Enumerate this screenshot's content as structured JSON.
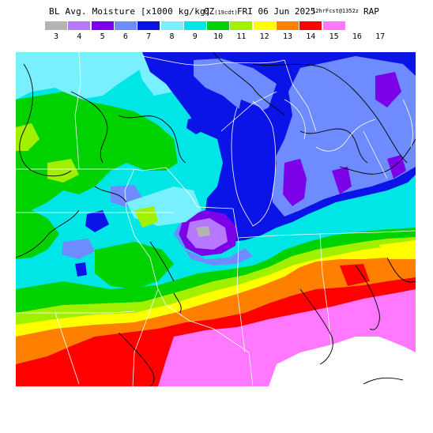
{
  "title": {
    "main": "BL Avg. Moisture [x1000 kg/kg]",
    "time": "0Z",
    "time_local": "(19cdt)",
    "date": "FRI 06 Jun 2025",
    "forecast": "12hrFcst@1352z",
    "model": "RAP"
  },
  "legend": {
    "ticks": [
      "3",
      "4",
      "5",
      "6",
      "7",
      "8",
      "9",
      "10",
      "11",
      "12",
      "13",
      "14",
      "15",
      "16",
      "17"
    ],
    "colors": [
      "#b4b4b4",
      "#b678ff",
      "#7c00e8",
      "#6e8cff",
      "#0a14e6",
      "#78f0ff",
      "#00e6e6",
      "#00d200",
      "#a0f000",
      "#ffff00",
      "#ff8000",
      "#ff0000",
      "#ff78ff",
      "#ffffff"
    ]
  },
  "map": {
    "region": "Upper Midwest / Great Lakes",
    "palette": {
      "v3": "#b4b4b4",
      "v4": "#b678ff",
      "v5": "#7c00e8",
      "v6": "#6e8cff",
      "v7": "#0a14e6",
      "v8": "#78f0ff",
      "v9": "#00e6e6",
      "v10": "#00d200",
      "v11": "#a0f000",
      "v12": "#ffff00",
      "v13": "#ff8000",
      "v14": "#ff0000",
      "v15": "#ff78ff",
      "v16": "#ffffff"
    }
  }
}
